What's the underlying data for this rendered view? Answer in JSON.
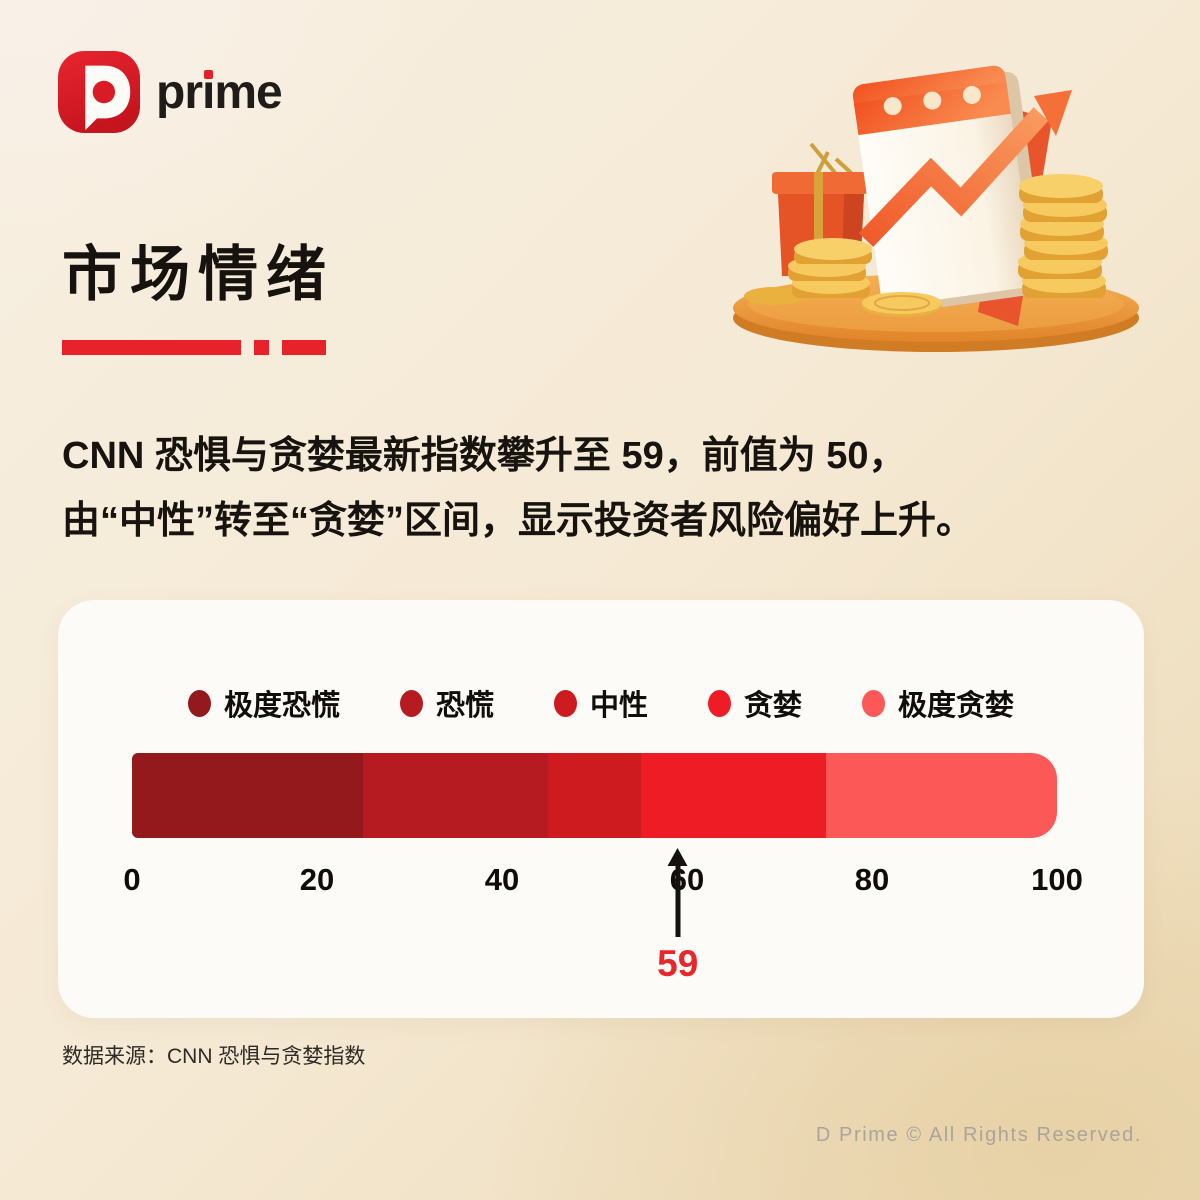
{
  "brand": {
    "mark_letter": "D",
    "name_pre": "pr",
    "name_i": "ı",
    "name_post": "me"
  },
  "header": {
    "title": "市场情绪"
  },
  "summary": {
    "line1": "CNN 恐惧与贪婪最新指数攀升至 59，前值为 50，",
    "line2": "由“中性”转至“贪婪”区间，显示投资者风险偏好上升。"
  },
  "chart_data": {
    "type": "bar",
    "subtype": "horizontal-sentiment-band",
    "title": "CNN 恐惧与贪婪指数",
    "xlim": [
      0,
      100
    ],
    "axis_ticks": [
      0,
      20,
      40,
      60,
      80,
      100
    ],
    "segments": [
      {
        "label": "极度恐慌",
        "from": 0,
        "to": 25,
        "color": "#94191d"
      },
      {
        "label": "恐慌",
        "from": 25,
        "to": 45,
        "color": "#b51b20"
      },
      {
        "label": "中性",
        "from": 45,
        "to": 55,
        "color": "#cd1b20"
      },
      {
        "label": "贪婪",
        "from": 55,
        "to": 75,
        "color": "#ee1c24"
      },
      {
        "label": "极度贪婪",
        "from": 75,
        "to": 100,
        "color": "#fc5858"
      }
    ],
    "legend_position": "top",
    "current_value": 59,
    "previous_value": 50,
    "marker_color": "#e8272b"
  },
  "footer": {
    "source": "数据来源：CNN 恐惧与贪婪指数",
    "copyright": "D Prime © All Rights Reserved."
  },
  "theme": {
    "accent_red": "#e8212a",
    "card_bg": "#fdfbf7",
    "text_dark": "#17130e"
  }
}
